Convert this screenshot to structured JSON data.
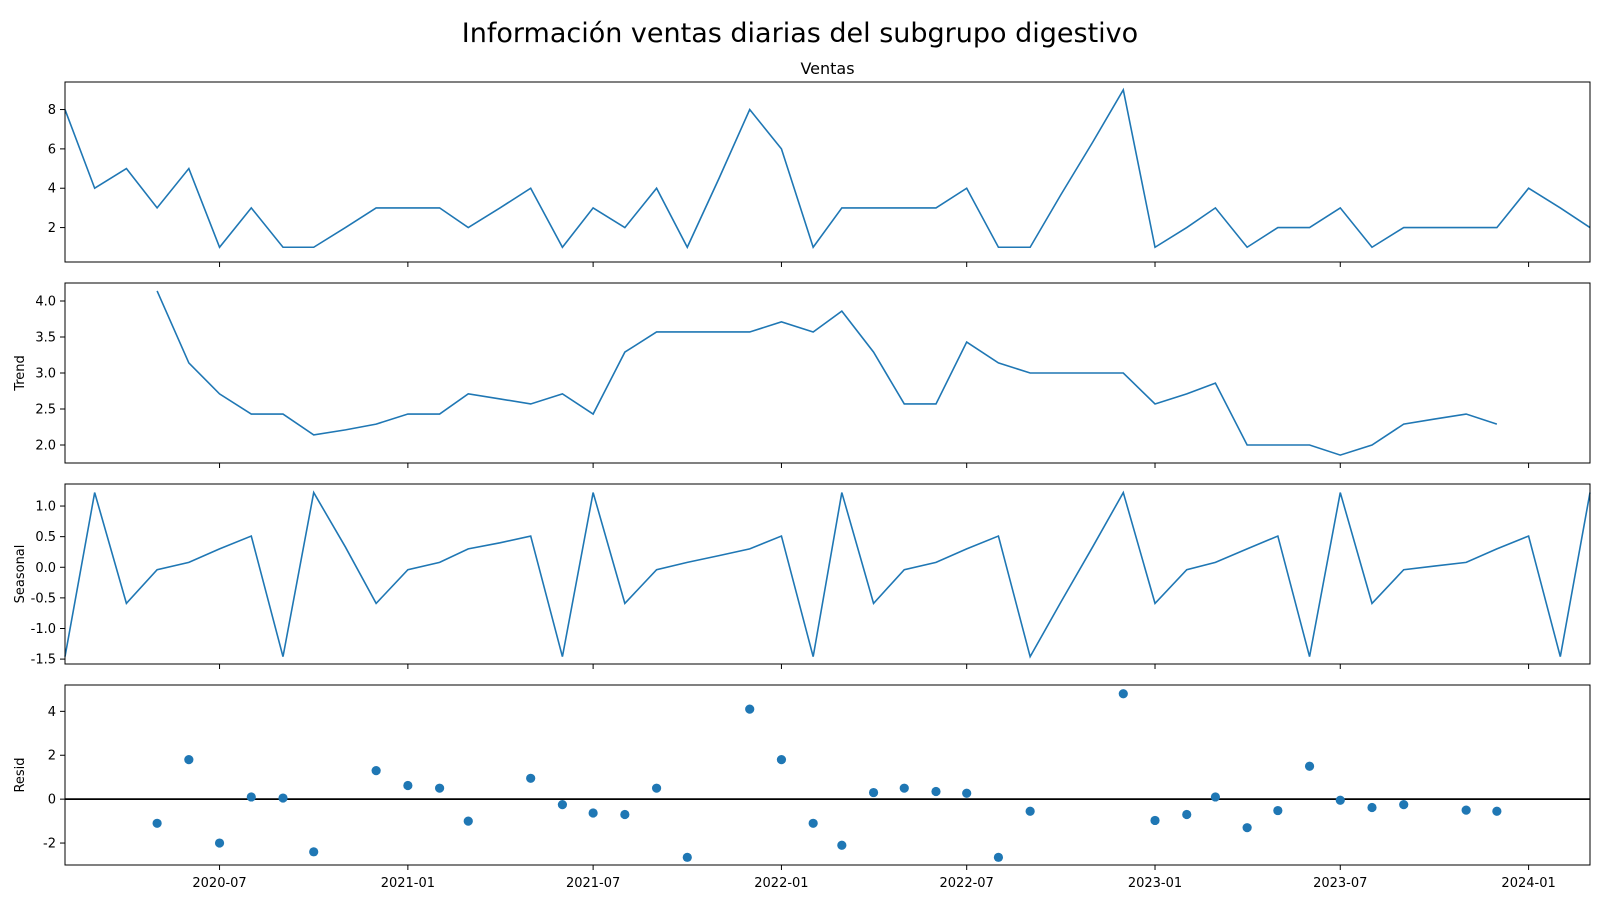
{
  "chart_data": {
    "type": "line",
    "title": "Información ventas diarias del subgrupo digestivo",
    "x_start": "2020-02",
    "x_end": "2024-02",
    "xlim": [
      "2020-02-01",
      "2024-03-01"
    ],
    "x_tick_labels": [
      "2020-07",
      "2021-01",
      "2021-07",
      "2022-01",
      "2022-07",
      "2023-01",
      "2023-07",
      "2024-01"
    ],
    "panels": [
      {
        "name": "observed",
        "subtitle": "Ventas",
        "ylabel": "",
        "kind": "line",
        "ylim": [
          0.25,
          9.4
        ],
        "yticks": [
          2,
          4,
          6,
          8
        ],
        "values": [
          8,
          4,
          5,
          3,
          5,
          1,
          3,
          1,
          1,
          2,
          3,
          3,
          3,
          2,
          3,
          4,
          1,
          3,
          2,
          4,
          1,
          4.5,
          8,
          6,
          1,
          3,
          3,
          3,
          3,
          4,
          1,
          1,
          3.67,
          6.33,
          9,
          1,
          2,
          3,
          1,
          2,
          2,
          3,
          1,
          2,
          2,
          2,
          2,
          4,
          3,
          2
        ]
      },
      {
        "name": "trend",
        "subtitle": "",
        "ylabel": "Trend",
        "kind": "line",
        "ylim": [
          1.75,
          4.25
        ],
        "yticks": [
          2.0,
          2.5,
          3.0,
          3.5,
          4.0
        ],
        "values": [
          null,
          null,
          null,
          4.14,
          3.14,
          2.71,
          2.43,
          2.43,
          2.14,
          2.21,
          2.29,
          2.43,
          2.43,
          2.71,
          2.64,
          2.57,
          2.71,
          2.43,
          3.29,
          3.57,
          3.57,
          3.57,
          3.57,
          3.71,
          3.57,
          3.86,
          3.29,
          2.57,
          2.57,
          3.43,
          3.14,
          3.0,
          3.0,
          3.0,
          3.0,
          2.57,
          2.71,
          2.86,
          2.0,
          2.0,
          2.0,
          1.86,
          2.0,
          2.29,
          2.36,
          2.43,
          2.29,
          null,
          null,
          null
        ]
      },
      {
        "name": "seasonal",
        "subtitle": "",
        "ylabel": "Seasonal",
        "kind": "line",
        "ylim": [
          -1.58,
          1.36
        ],
        "yticks": [
          -1.5,
          -1.0,
          -0.5,
          0.0,
          0.5,
          1.0
        ],
        "values": [
          -1.46,
          1.22,
          -0.59,
          -0.04,
          0.08,
          0.3,
          0.51,
          -1.46,
          1.22,
          0.33,
          -0.59,
          -0.04,
          0.08,
          0.3,
          0.4,
          0.51,
          -1.46,
          1.22,
          -0.59,
          -0.04,
          0.08,
          0.19,
          0.3,
          0.51,
          -1.46,
          1.22,
          -0.59,
          -0.04,
          0.08,
          0.3,
          0.51,
          -1.46,
          -0.57,
          0.33,
          1.22,
          -0.59,
          -0.04,
          0.08,
          0.3,
          0.51,
          -1.46,
          1.22,
          -0.59,
          -0.04,
          0.02,
          0.08,
          0.3,
          0.51,
          -1.46,
          1.22
        ]
      },
      {
        "name": "resid",
        "subtitle": "",
        "ylabel": "Resid",
        "kind": "scatter",
        "ylim": [
          -3.0,
          5.2
        ],
        "yticks": [
          -2,
          0,
          2,
          4
        ],
        "zero_line": true,
        "values": [
          null,
          null,
          null,
          -1.1,
          1.8,
          -2.0,
          0.1,
          0.05,
          -2.4,
          null,
          1.3,
          0.62,
          0.5,
          -1.0,
          null,
          0.95,
          -0.25,
          -0.63,
          -0.7,
          0.5,
          -2.65,
          null,
          4.1,
          1.8,
          -1.1,
          -2.1,
          0.3,
          0.5,
          0.35,
          0.27,
          -2.65,
          -0.55,
          null,
          null,
          4.8,
          -0.97,
          -0.7,
          0.1,
          -1.3,
          -0.52,
          1.5,
          -0.05,
          -0.38,
          -0.25,
          null,
          -0.5,
          -0.55,
          null,
          null,
          null
        ]
      }
    ]
  }
}
